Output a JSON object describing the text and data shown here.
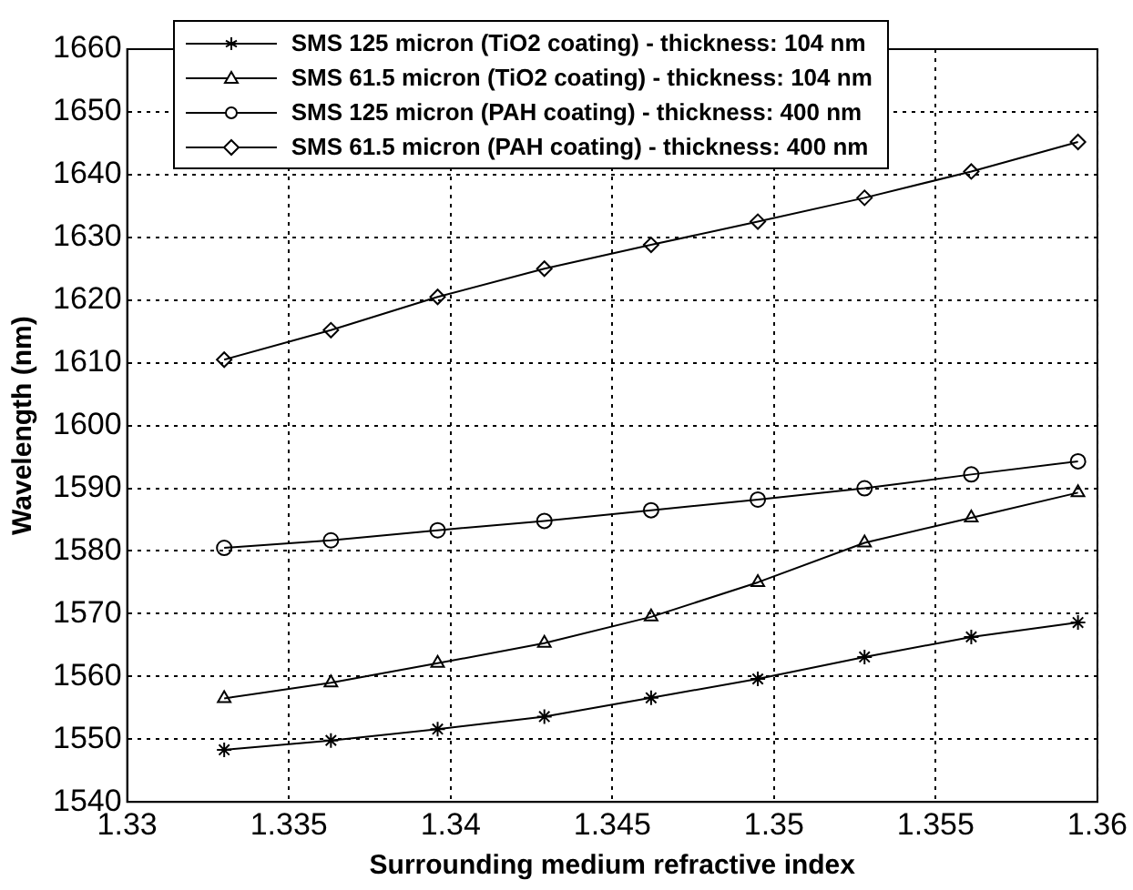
{
  "chart_data": {
    "type": "line",
    "xlabel": "Surrounding medium refractive index",
    "ylabel": "Wavelength (nm)",
    "x": [
      1.333,
      1.3363,
      1.3396,
      1.3429,
      1.3462,
      1.3495,
      1.3528,
      1.3561,
      1.3594
    ],
    "series": [
      {
        "name": "SMS 125 micron (TiO2 coating) - thickness: 104 nm",
        "color": "#000000",
        "marker": "cross",
        "values": [
          1548.3,
          1549.8,
          1551.6,
          1553.6,
          1556.6,
          1559.6,
          1563.1,
          1566.3,
          1568.6
        ]
      },
      {
        "name": "SMS 61.5 micron (TiO2 coating) - thickness: 104 nm",
        "color": "#000000",
        "marker": "triangle",
        "values": [
          1556.5,
          1559,
          1562.1,
          1565.3,
          1569.5,
          1575,
          1581.3,
          1585.3,
          1589.3
        ]
      },
      {
        "name": "SMS 125 micron (PAH coating) - thickness: 400 nm",
        "color": "#000000",
        "marker": "circle",
        "values": [
          1580.5,
          1581.7,
          1583.3,
          1584.8,
          1586.5,
          1588.2,
          1590,
          1592.2,
          1594.3
        ]
      },
      {
        "name": "SMS 61.5 micron (PAH coating) - thickness: 400 nm",
        "color": "#000000",
        "marker": "diamond",
        "values": [
          1610.5,
          1615.2,
          1620.5,
          1625,
          1628.8,
          1632.5,
          1636.3,
          1640.5,
          1645.2
        ]
      }
    ],
    "xlim": [
      1.33,
      1.36
    ],
    "xticks": [
      1.33,
      1.335,
      1.34,
      1.345,
      1.35,
      1.355,
      1.36
    ],
    "ylim": [
      1540,
      1660
    ],
    "yticks": [
      1540,
      1550,
      1560,
      1570,
      1580,
      1590,
      1600,
      1610,
      1620,
      1630,
      1640,
      1650,
      1660
    ],
    "grid": true,
    "legend": "top left",
    "line_style": "solid"
  }
}
